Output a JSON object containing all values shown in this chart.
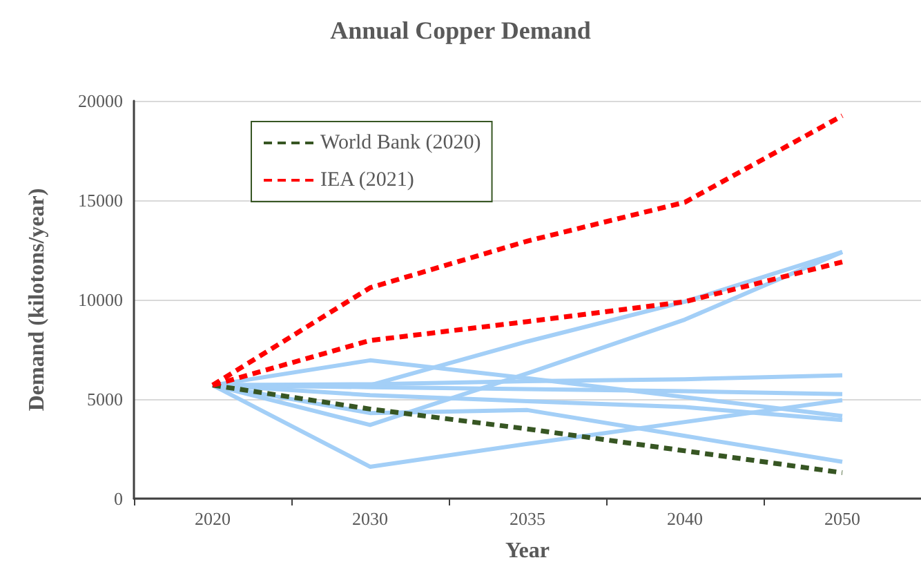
{
  "chart_data": {
    "type": "line",
    "title": "Annual Copper Demand",
    "xlabel": "Year",
    "ylabel": "Demand (kilotons/year)",
    "categories": [
      "2020",
      "2030",
      "2035",
      "2040",
      "2050"
    ],
    "ylim": [
      0,
      20000
    ],
    "yticks": [
      0,
      5000,
      10000,
      15000,
      20000
    ],
    "grid": "y",
    "legend": "top left",
    "marker": "none",
    "series": [
      {
        "name": "World Bank (2020)",
        "color": "#375623",
        "line_style": "dashed",
        "values": [
          5700,
          4500,
          3500,
          2400,
          1300
        ]
      },
      {
        "name": "IEA (2021)",
        "color": "#ff0000",
        "line_style": "dashed",
        "values": [
          5700,
          10600,
          12950,
          14900,
          19250
        ]
      },
      {
        "color": "#ff0000",
        "line_style": "dashed",
        "values": [
          5700,
          7950,
          8900,
          9900,
          11900
        ]
      },
      {
        "color": "#a3cff7",
        "line_style": "solid",
        "values": [
          5700,
          5700,
          7900,
          9900,
          12400
        ]
      },
      {
        "color": "#a3cff7",
        "line_style": "solid",
        "values": [
          5700,
          3700,
          6300,
          9000,
          12400
        ]
      },
      {
        "color": "#a3cff7",
        "line_style": "solid",
        "values": [
          5700,
          6950,
          6050,
          5100,
          4150
        ]
      },
      {
        "color": "#a3cff7",
        "line_style": "solid",
        "values": [
          5700,
          4300,
          4450,
          3150,
          1850
        ]
      },
      {
        "color": "#a3cff7",
        "line_style": "solid",
        "values": [
          5700,
          1600,
          2750,
          3850,
          4950
        ]
      },
      {
        "color": "#a3cff7",
        "line_style": "solid",
        "values": [
          5700,
          5750,
          5900,
          6000,
          6200
        ]
      },
      {
        "color": "#a3cff7",
        "line_style": "solid",
        "values": [
          5700,
          5600,
          5500,
          5400,
          5250
        ]
      },
      {
        "color": "#a3cff7",
        "line_style": "solid",
        "values": [
          5700,
          5200,
          4900,
          4600,
          3950
        ]
      }
    ]
  }
}
